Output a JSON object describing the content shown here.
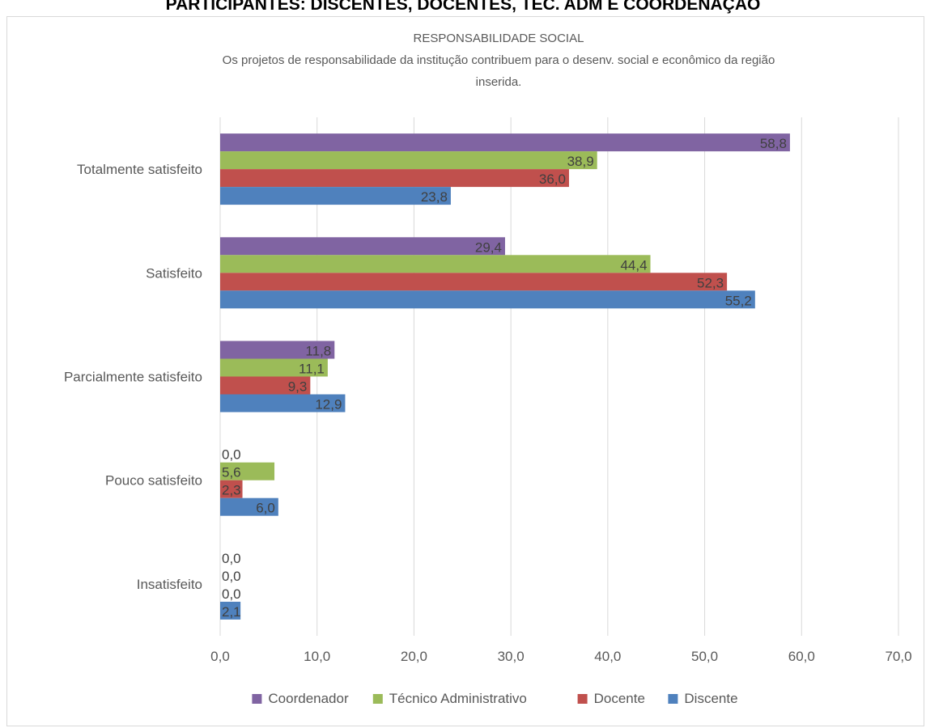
{
  "page_header": "PARTICIPANTES: DISCENTES, DOCENTES, TEC. ADM E COORDENAÇÃO",
  "chart_data": {
    "type": "bar",
    "orientation": "horizontal",
    "title": "RESPONSABILIDADE SOCIAL",
    "subtitle_lines": [
      "Os projetos de responsabilidade da institução contribuem para o desenv. social e econômico da região",
      "inserida."
    ],
    "categories": [
      "Totalmente satisfeito",
      "Satisfeito",
      "Parcialmente satisfeito",
      "Pouco satisfeito",
      "Insatisfeito"
    ],
    "series": [
      {
        "name": "Coordenador",
        "color": "#8064a2",
        "values": [
          58.8,
          29.4,
          11.8,
          0.0,
          0.0
        ]
      },
      {
        "name": "Técnico Administrativo",
        "color": "#9bbb59",
        "values": [
          38.9,
          44.4,
          11.1,
          5.6,
          0.0
        ]
      },
      {
        "name": "Docente",
        "color": "#c0504d",
        "values": [
          36.0,
          52.3,
          9.3,
          2.3,
          0.0
        ]
      },
      {
        "name": "Discente",
        "color": "#4f81bd",
        "values": [
          23.8,
          55.2,
          12.9,
          6.0,
          2.1
        ]
      }
    ],
    "x_ticks": [
      "0,0",
      "10,0",
      "20,0",
      "30,0",
      "40,0",
      "50,0",
      "60,0",
      "70,0"
    ],
    "xlim": [
      0,
      70
    ],
    "xlabel": "",
    "ylabel": "",
    "grid": true,
    "legend_position": "bottom",
    "data_labels": true,
    "decimal_separator": ","
  }
}
